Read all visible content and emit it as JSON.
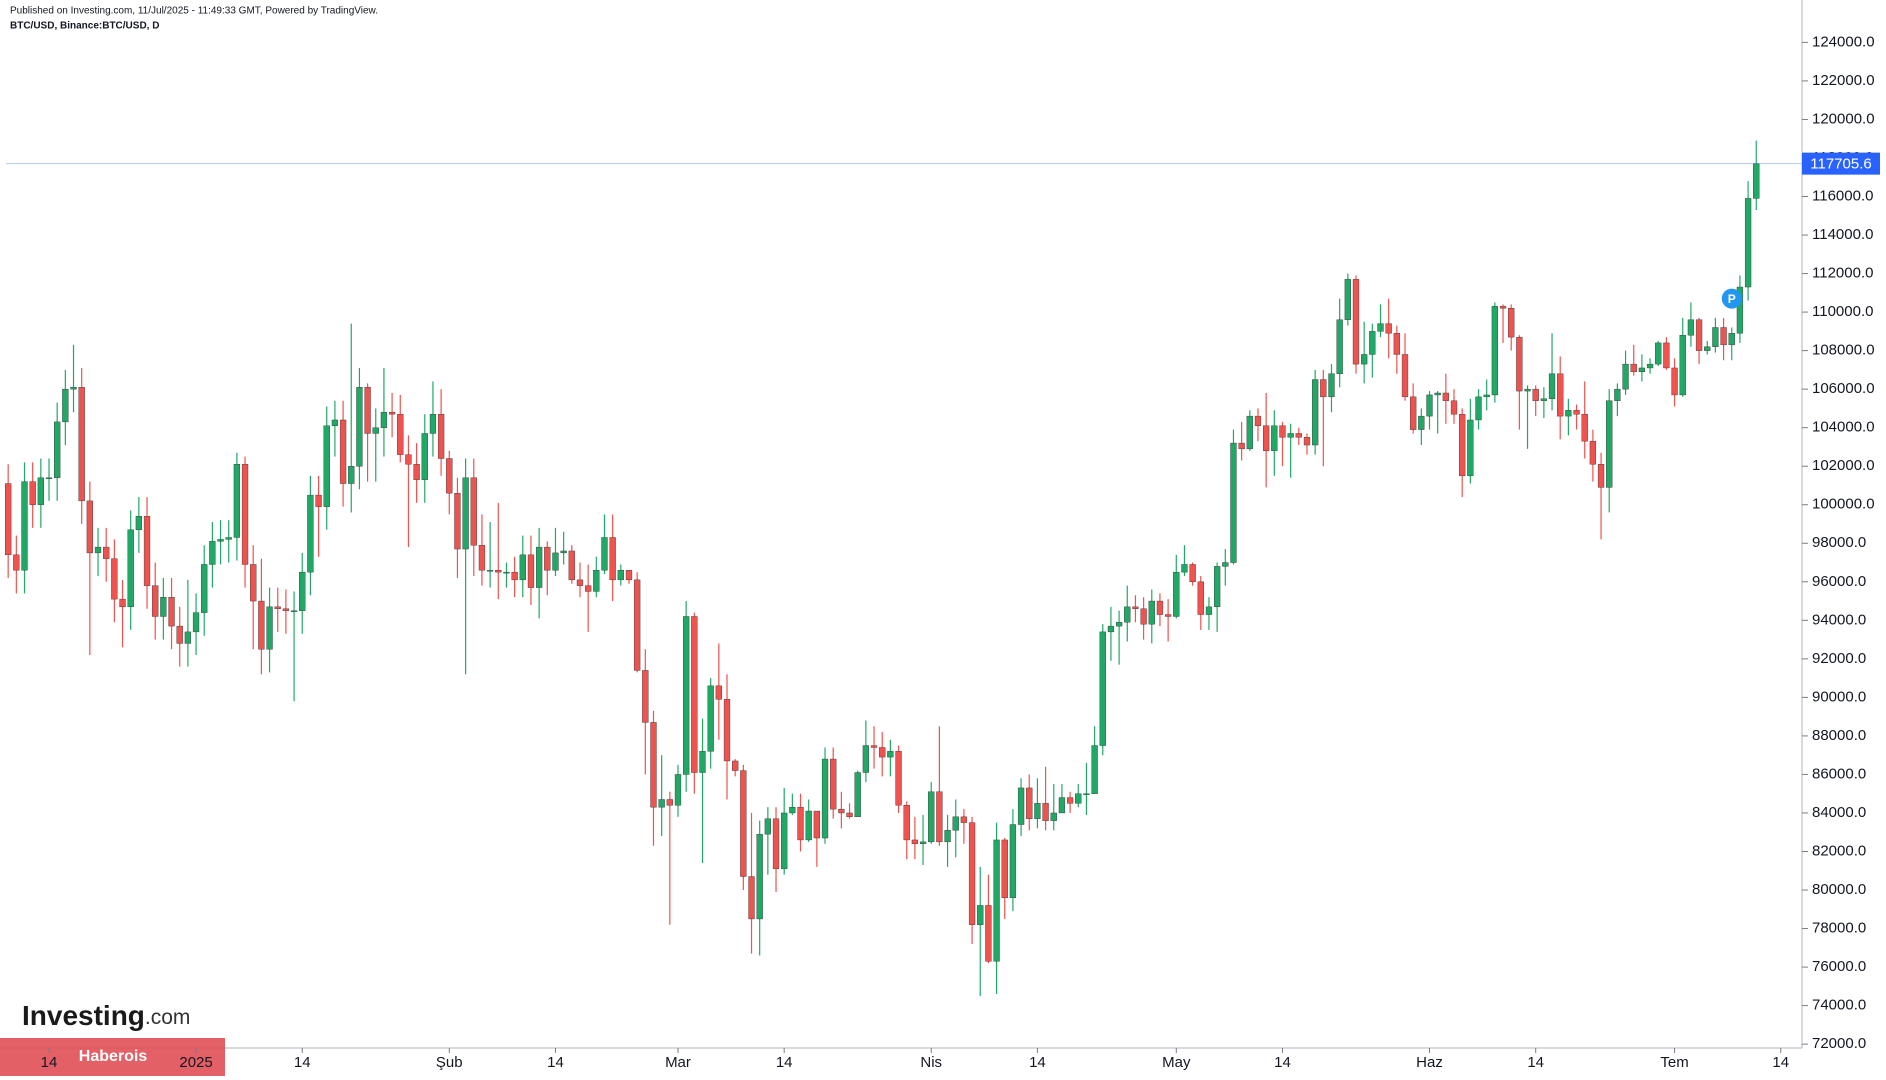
{
  "chart_data": {
    "type": "candlestick",
    "published": "Published on Investing.com, 11/Jul/2025 - 11:49:33 GMT, Powered by TradingView.",
    "symbol": "BTC/USD, Binance:BTC/USD, D",
    "logo": "Investing",
    "logo_suffix": ".com",
    "watermark": "Haberois",
    "badge": "P",
    "up_color": "#22a866",
    "down_color": "#ef5350",
    "price_line_color": "#2962ff",
    "xlim": [
      -1,
      219.6
    ],
    "ylim": [
      71800,
      126200
    ],
    "xticks": [
      {
        "value": 5,
        "label": "14"
      },
      {
        "value": 23,
        "label": "2025"
      },
      {
        "value": 36,
        "label": "14"
      },
      {
        "value": 54,
        "label": "Şub"
      },
      {
        "value": 67,
        "label": "14"
      },
      {
        "value": 82,
        "label": "Mar"
      },
      {
        "value": 95,
        "label": "14"
      },
      {
        "value": 113,
        "label": "Nis"
      },
      {
        "value": 126,
        "label": "14"
      },
      {
        "value": 143,
        "label": "May"
      },
      {
        "value": 156,
        "label": "14"
      },
      {
        "value": 174,
        "label": "Haz"
      },
      {
        "value": 187,
        "label": "14"
      },
      {
        "value": 204,
        "label": "Tem"
      },
      {
        "value": 217,
        "label": "14"
      }
    ],
    "yticks": [
      {
        "value": 72000,
        "label": "72000.0"
      },
      {
        "value": 74000,
        "label": "74000.0"
      },
      {
        "value": 76000,
        "label": "76000.0"
      },
      {
        "value": 78000,
        "label": "78000.0"
      },
      {
        "value": 80000,
        "label": "80000.0"
      },
      {
        "value": 82000,
        "label": "82000.0"
      },
      {
        "value": 84000,
        "label": "84000.0"
      },
      {
        "value": 86000,
        "label": "86000.0"
      },
      {
        "value": 88000,
        "label": "88000.0"
      },
      {
        "value": 90000,
        "label": "90000.0"
      },
      {
        "value": 92000,
        "label": "92000.0"
      },
      {
        "value": 94000,
        "label": "94000.0"
      },
      {
        "value": 96000,
        "label": "96000.0"
      },
      {
        "value": 98000,
        "label": "98000.0"
      },
      {
        "value": 100000,
        "label": "100000.0"
      },
      {
        "value": 102000,
        "label": "102000.0"
      },
      {
        "value": 104000,
        "label": "104000.0"
      },
      {
        "value": 106000,
        "label": "106000.0"
      },
      {
        "value": 108000,
        "label": "108000.0"
      },
      {
        "value": 110000,
        "label": "110000.0"
      },
      {
        "value": 112000,
        "label": "112000.0"
      },
      {
        "value": 114000,
        "label": "114000.0"
      },
      {
        "value": 116000,
        "label": "116000.0"
      },
      {
        "value": 118000,
        "label": "118000.0"
      },
      {
        "value": 120000,
        "label": "120000.0"
      },
      {
        "value": 122000,
        "label": "122000.0"
      },
      {
        "value": 124000,
        "label": "124000.0"
      }
    ],
    "open": [
      101100,
      97400,
      96600,
      101200,
      100000,
      101400,
      101400,
      104300,
      106000,
      106100,
      100200,
      97500,
      97800,
      97200,
      95100,
      94700,
      98700,
      99400,
      95800,
      94200,
      95200,
      93700,
      92800,
      93400,
      94400,
      96900,
      98100,
      98200,
      98300,
      102100,
      96900,
      95000,
      92500,
      94700,
      94600,
      94500,
      94500,
      96500,
      100500,
      99900,
      104100,
      104400,
      101100,
      102000,
      106100,
      103700,
      104000,
      104800,
      104700,
      102600,
      102100,
      101300,
      103700,
      104700,
      102400,
      100600,
      97700,
      101400,
      97900,
      96600,
      96600,
      96500,
      96500,
      96100,
      97400,
      95700,
      97800,
      96600,
      97500,
      97600,
      96100,
      95800,
      95500,
      96600,
      98300,
      96100,
      96600,
      96100,
      91400,
      88700,
      84300,
      84700,
      84400,
      86000,
      94200,
      86100,
      87200,
      90600,
      89900,
      86700,
      86200,
      80700,
      78500,
      82900,
      83700,
      81100,
      84000,
      84300,
      82600,
      84100,
      82700,
      86800,
      84200,
      84000,
      83800,
      86100,
      87500,
      87400,
      86900,
      87200,
      84400,
      82600,
      82400,
      82500,
      85100,
      82500,
      83100,
      83800,
      83500,
      78200,
      79200,
      76300,
      82600,
      79600,
      83400,
      85300,
      83700,
      84500,
      83600,
      84000,
      84800,
      84500,
      85000,
      85000,
      87500,
      93400,
      93700,
      93900,
      94700,
      94600,
      93800,
      95000,
      94300,
      94200,
      96500,
      96900,
      96000,
      94300,
      94700,
      96800,
      97000,
      103200,
      102900,
      104600,
      104100,
      102800,
      104100,
      103500,
      103700,
      103500,
      103100,
      106500,
      105600,
      106800,
      109600,
      111700,
      107300,
      107800,
      109000,
      109400,
      108900,
      107800,
      105600,
      103900,
      104600,
      105700,
      105800,
      105400,
      104700,
      101500,
      104400,
      105600,
      105700,
      110300,
      110200,
      108700,
      105900,
      106000,
      105400,
      105500,
      106800,
      104600,
      104900,
      104700,
      103300,
      102100,
      100900,
      105400,
      106000,
      107300,
      106900,
      107100,
      107300,
      108400,
      107100,
      105700,
      108800,
      109600,
      108000,
      108200,
      109200,
      108300,
      108900,
      111300,
      115900
    ],
    "high": [
      102100,
      98400,
      102200,
      102200,
      102400,
      102400,
      105300,
      107000,
      108300,
      107100,
      101200,
      98800,
      98800,
      98200,
      96100,
      99700,
      100400,
      100400,
      97000,
      96200,
      96200,
      94700,
      96100,
      95400,
      97900,
      99100,
      99200,
      99200,
      102700,
      102500,
      97900,
      97200,
      95700,
      95700,
      95600,
      95500,
      97500,
      101500,
      101500,
      105100,
      105400,
      105400,
      109400,
      107100,
      106300,
      105000,
      107100,
      105800,
      105700,
      103600,
      103200,
      104700,
      106400,
      106000,
      102800,
      101400,
      102400,
      102400,
      99500,
      99100,
      100100,
      97000,
      97300,
      98400,
      98400,
      98800,
      98100,
      98800,
      98600,
      97900,
      97000,
      96900,
      97300,
      99500,
      99500,
      96900,
      96600,
      96500,
      92500,
      89300,
      87000,
      85100,
      86500,
      95000,
      94400,
      88900,
      91000,
      92800,
      91200,
      86800,
      86500,
      84000,
      83600,
      84300,
      84300,
      85300,
      85000,
      85000,
      84700,
      84100,
      87400,
      87400,
      85100,
      84500,
      86200,
      88800,
      88500,
      88200,
      87800,
      87500,
      84600,
      83800,
      83900,
      85600,
      88500,
      83900,
      84700,
      84200,
      83800,
      81200,
      80800,
      83500,
      82700,
      84200,
      85800,
      86000,
      85800,
      86400,
      85500,
      85500,
      85100,
      85500,
      86600,
      88500,
      93800,
      94700,
      94500,
      95800,
      95300,
      95200,
      95600,
      95400,
      95100,
      97400,
      97900,
      97000,
      96300,
      95200,
      97000,
      97700,
      103900,
      104300,
      104900,
      105000,
      105800,
      104900,
      104300,
      104200,
      104000,
      103700,
      107000,
      107000,
      107300,
      110700,
      112000,
      111900,
      109500,
      109400,
      110400,
      110700,
      109300,
      108900,
      106300,
      105000,
      105900,
      105900,
      106800,
      106000,
      105000,
      105500,
      106000,
      106500,
      110500,
      110400,
      110400,
      108800,
      106200,
      106200,
      106100,
      108900,
      107700,
      105500,
      105200,
      106400,
      103900,
      102700,
      106000,
      106300,
      108000,
      108300,
      107800,
      107600,
      108500,
      108700,
      107600,
      109700,
      110500,
      109700,
      108500,
      109700,
      109700,
      109200,
      111900,
      116800,
      118900
    ],
    "low": [
      96200,
      95400,
      95400,
      98800,
      98800,
      100200,
      100200,
      103100,
      104800,
      99000,
      92200,
      96300,
      96000,
      93900,
      92600,
      93500,
      97500,
      94600,
      93000,
      93000,
      92500,
      91600,
      91600,
      92200,
      93200,
      95700,
      96900,
      97000,
      97100,
      95700,
      92500,
      91200,
      91300,
      93400,
      93300,
      89800,
      93300,
      95300,
      97300,
      98700,
      102500,
      99900,
      99600,
      100800,
      101200,
      101200,
      102500,
      103500,
      102200,
      97800,
      100100,
      100100,
      102500,
      101500,
      99500,
      96200,
      91200,
      96300,
      95800,
      95700,
      95100,
      95700,
      95200,
      95200,
      94800,
      94100,
      95300,
      96300,
      96900,
      95900,
      95200,
      93400,
      95200,
      96400,
      95000,
      95800,
      95900,
      91300,
      86000,
      82300,
      82800,
      78200,
      83800,
      85100,
      85000,
      81400,
      86300,
      87800,
      84700,
      85900,
      80000,
      76700,
      76600,
      80800,
      79900,
      80800,
      83900,
      82000,
      82500,
      81200,
      82400,
      83700,
      83200,
      83700,
      83800,
      85600,
      86300,
      85900,
      85900,
      84000,
      81600,
      81600,
      81300,
      82400,
      82300,
      81200,
      81700,
      82400,
      77200,
      74500,
      76200,
      74600,
      78500,
      78900,
      82800,
      83100,
      83200,
      83100,
      83100,
      84000,
      84000,
      84300,
      83900,
      85000,
      87000,
      91900,
      91700,
      92900,
      93900,
      93000,
      92800,
      93700,
      92900,
      94100,
      96300,
      95800,
      93500,
      93500,
      93400,
      95800,
      96900,
      102300,
      102800,
      103300,
      100900,
      101500,
      102000,
      101400,
      103100,
      102600,
      102600,
      102000,
      104800,
      106100,
      109300,
      106800,
      106300,
      106600,
      108700,
      107600,
      106800,
      105400,
      103700,
      103100,
      103900,
      103700,
      104200,
      104200,
      100400,
      101100,
      103900,
      104900,
      105300,
      108400,
      108000,
      103900,
      102900,
      104600,
      104500,
      104900,
      103400,
      103600,
      103900,
      102400,
      101200,
      98200,
      99600,
      104600,
      105700,
      106700,
      106400,
      106800,
      107200,
      107000,
      105100,
      105600,
      108200,
      107300,
      107800,
      107900,
      107500,
      107500,
      108400,
      110600,
      115300
    ],
    "close": [
      97400,
      96600,
      101200,
      100000,
      101400,
      101400,
      104300,
      106000,
      106100,
      100200,
      97500,
      97800,
      97200,
      95100,
      94700,
      98700,
      99400,
      95800,
      94200,
      95200,
      93700,
      92800,
      93400,
      94400,
      96900,
      98100,
      98200,
      98300,
      102100,
      96900,
      95000,
      92500,
      94700,
      94600,
      94500,
      94500,
      96500,
      100500,
      99900,
      104100,
      104400,
      101100,
      102000,
      106100,
      103700,
      104000,
      104800,
      104700,
      102600,
      102100,
      101300,
      103700,
      104700,
      102400,
      100600,
      97700,
      101400,
      97900,
      96600,
      96600,
      96500,
      96500,
      96100,
      97400,
      95700,
      97800,
      96600,
      97500,
      97600,
      96100,
      95800,
      95500,
      96600,
      98300,
      96100,
      96600,
      96100,
      91400,
      88700,
      84300,
      84700,
      84400,
      86000,
      94200,
      86100,
      87200,
      90600,
      89900,
      86700,
      86200,
      80700,
      78500,
      82900,
      83700,
      81100,
      84000,
      84300,
      82600,
      84100,
      82700,
      86800,
      84200,
      84000,
      83800,
      86100,
      87500,
      87400,
      86900,
      87200,
      84400,
      82600,
      82400,
      82500,
      85100,
      82500,
      83100,
      83800,
      83500,
      78200,
      79200,
      76300,
      82600,
      79600,
      83400,
      85300,
      83700,
      84500,
      83600,
      84000,
      84800,
      84500,
      85000,
      85000,
      87500,
      93400,
      93700,
      93900,
      94700,
      94600,
      93800,
      95000,
      94300,
      94200,
      96500,
      96900,
      96000,
      94300,
      94700,
      96800,
      97000,
      103200,
      102900,
      104600,
      104100,
      102800,
      104100,
      103500,
      103700,
      103500,
      103100,
      106500,
      105600,
      106800,
      109600,
      111700,
      107300,
      107800,
      109000,
      109400,
      108900,
      107800,
      105600,
      103900,
      104600,
      105700,
      105800,
      105400,
      104700,
      101500,
      104400,
      105600,
      105700,
      110300,
      110200,
      108700,
      105900,
      106000,
      105400,
      105500,
      106800,
      104600,
      104900,
      104700,
      103300,
      102100,
      100900,
      105400,
      106000,
      107300,
      106900,
      107100,
      107300,
      108400,
      107100,
      105700,
      108800,
      109600,
      108000,
      108200,
      109200,
      108300,
      108900,
      111300,
      115900,
      117705.6
    ]
  }
}
